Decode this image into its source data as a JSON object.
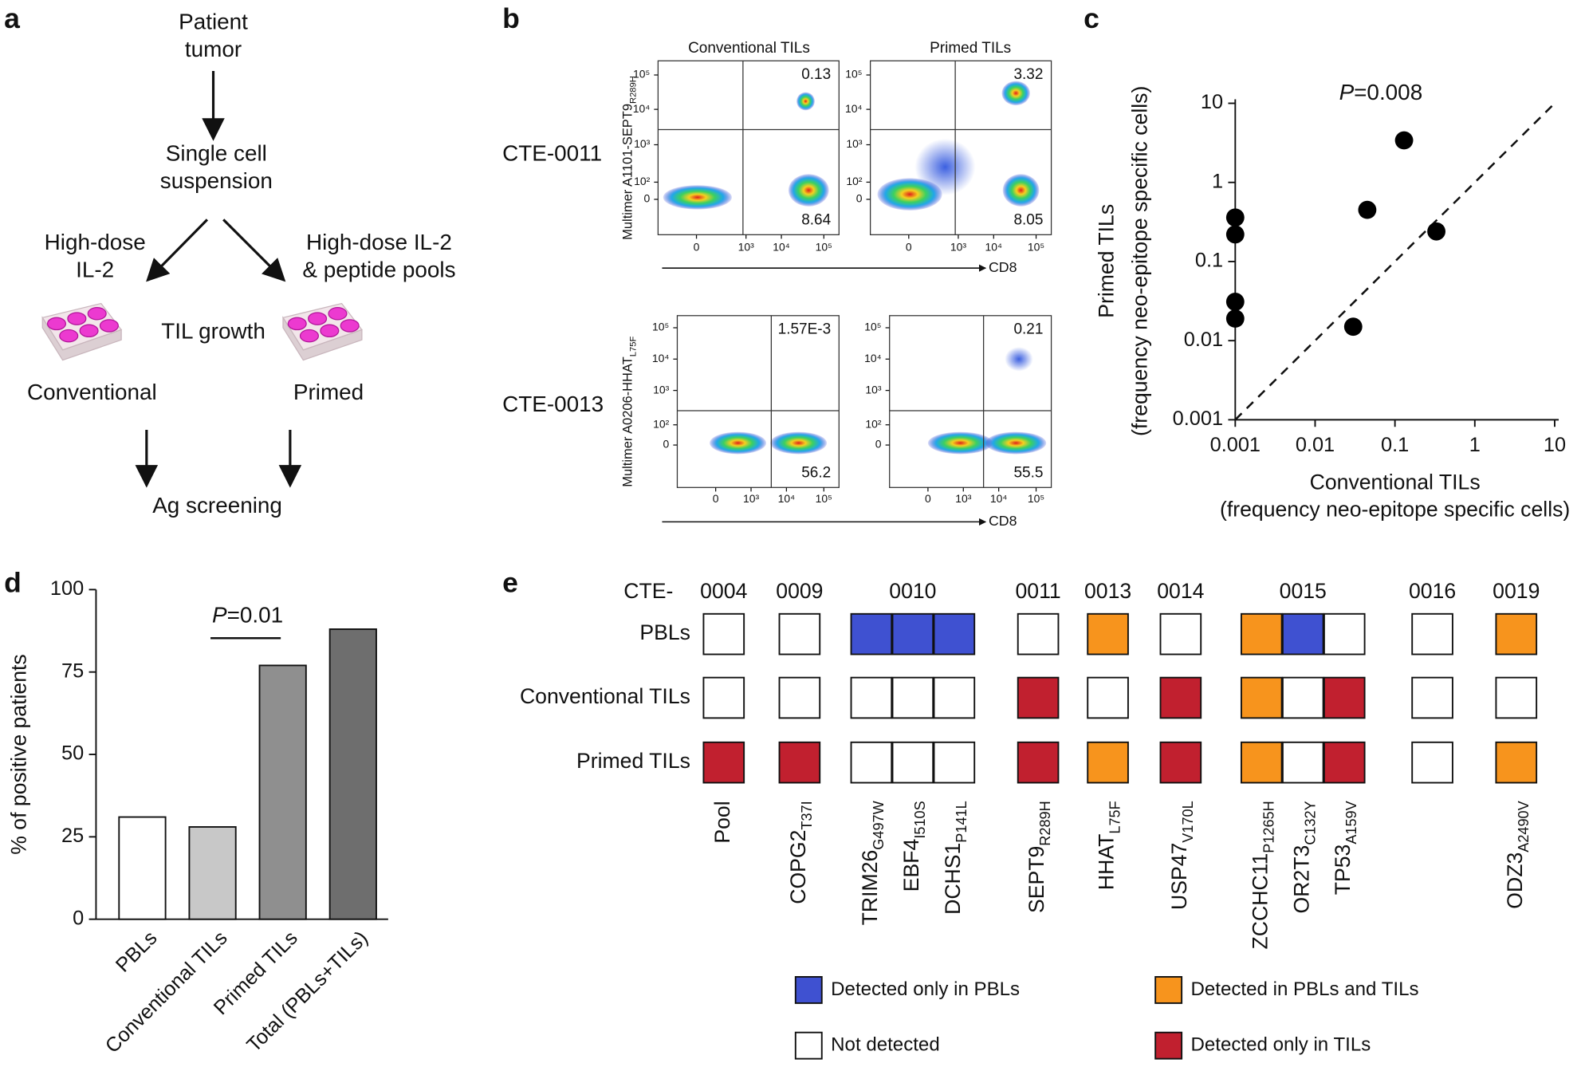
{
  "panel_labels": [
    "a",
    "b",
    "c",
    "d",
    "e"
  ],
  "diagram": {
    "nodes": [
      {
        "lines": [
          "Patient",
          "tumor"
        ]
      },
      {
        "lines": [
          "Single cell",
          "suspension"
        ]
      },
      {
        "lines": [
          "High-dose",
          "IL-2"
        ]
      },
      {
        "lines": [
          "High-dose IL-2",
          "& peptide pools"
        ]
      },
      {
        "lines": [
          "TIL growth"
        ]
      },
      {
        "lines": [
          "Conventional"
        ]
      },
      {
        "lines": [
          "Primed"
        ]
      },
      {
        "lines": [
          "Ag screening"
        ]
      }
    ]
  },
  "flow": {
    "column_titles": [
      "Conventional TILs",
      "Primed TILs"
    ],
    "x_label": "CD8",
    "x_ticks": [
      "0",
      "10³",
      "10⁴",
      "10⁵"
    ],
    "y_ticks": [
      "10⁵",
      "10⁴",
      "10³",
      "10²",
      "0"
    ],
    "rows": [
      {
        "name": "CTE-0011",
        "y_label": {
          "text": "Multimer A1101-SEPT9",
          "sub": "R289H"
        },
        "plots": [
          {
            "upper_right": "0.13",
            "lower_right": "8.64"
          },
          {
            "upper_right": "3.32",
            "lower_right": "8.05"
          }
        ]
      },
      {
        "name": "CTE-0013",
        "y_label": {
          "text": "Multimer A0206-HHAT",
          "sub": "L75F"
        },
        "plots": [
          {
            "upper_right": "1.57E-3",
            "lower_right": "56.2"
          },
          {
            "upper_right": "0.21",
            "lower_right": "55.5"
          }
        ]
      }
    ]
  },
  "chart_data": [
    {
      "type": "scatter",
      "x_label": [
        "Conventional TILs",
        "(frequency neo-epitope specific cells)"
      ],
      "y_label": [
        "Primed TILs",
        "(frequency neo-epitope specific cells)"
      ],
      "x": [
        0.001,
        0.001,
        0.001,
        0.001,
        0.03,
        0.045,
        0.13,
        0.33
      ],
      "values": [
        0.36,
        0.22,
        0.031,
        0.019,
        0.015,
        0.45,
        3.4,
        0.24
      ],
      "color": "#000000",
      "xlim": [
        0.001,
        10
      ],
      "ylim": [
        0.001,
        10
      ],
      "xticks": [
        0.001,
        0.01,
        0.1,
        1,
        10
      ],
      "yticks": [
        0.001,
        0.01,
        0.1,
        1,
        10
      ],
      "log_x": true,
      "log_y": true,
      "identity_line": true,
      "annotation": {
        "italic": "P",
        "text": "=0.008"
      }
    },
    {
      "type": "bar",
      "categories": [
        "PBLs",
        "Conventional TILs",
        "Primed TILs",
        "Total (PBLs+TILs)"
      ],
      "values": [
        31,
        28,
        77,
        88
      ],
      "colors": [
        "#ffffff",
        "#c8c8c8",
        "#8f8f8f",
        "#6e6e6e"
      ],
      "ylim": [
        0,
        100
      ],
      "yticks": [
        0,
        25,
        50,
        75,
        100
      ],
      "y_label": "% of positive patients",
      "annotation": {
        "italic": "P",
        "text": "=0.01",
        "between": [
          1,
          2
        ]
      }
    }
  ],
  "matrix": {
    "corner_label": "CTE-",
    "groups": [
      {
        "id": "0004",
        "columns": [
          {
            "gene": "Pool"
          }
        ]
      },
      {
        "id": "0009",
        "columns": [
          {
            "gene": "COPG2",
            "sub": "T37I"
          }
        ]
      },
      {
        "id": "0010",
        "columns": [
          {
            "gene": "TRIM26",
            "sub": "G497W"
          },
          {
            "gene": "EBF4",
            "sub": "I510S"
          },
          {
            "gene": "DCHS1",
            "sub": "P141L"
          }
        ]
      },
      {
        "id": "0011",
        "columns": [
          {
            "gene": "SEPT9",
            "sub": "R289H"
          }
        ]
      },
      {
        "id": "0013",
        "columns": [
          {
            "gene": "HHAT",
            "sub": "L75F"
          }
        ]
      },
      {
        "id": "0014",
        "columns": [
          {
            "gene": "USP47",
            "sub": "V170L"
          }
        ]
      },
      {
        "id": "0015",
        "columns": [
          {
            "gene": "ZCCHC11",
            "sub": "P1265H"
          },
          {
            "gene": "OR2T3",
            "sub": "C132Y"
          },
          {
            "gene": "TP53",
            "sub": "A159V"
          }
        ]
      },
      {
        "id": "0016",
        "columns": [
          null
        ]
      },
      {
        "id": "0019",
        "columns": [
          {
            "gene": "ODZ3",
            "sub": "A2490V"
          }
        ]
      }
    ],
    "rows": [
      {
        "name": "PBLs",
        "cells": [
          "#ffffff",
          "#ffffff",
          "#3f51d1",
          "#3f51d1",
          "#3f51d1",
          "#ffffff",
          "#f7941d",
          "#ffffff",
          "#f7941d",
          "#3f51d1",
          "#ffffff",
          "#ffffff",
          "#f7941d"
        ]
      },
      {
        "name": "Conventional TILs",
        "cells": [
          "#ffffff",
          "#ffffff",
          "#ffffff",
          "#ffffff",
          "#ffffff",
          "#c1202f",
          "#ffffff",
          "#c1202f",
          "#f7941d",
          "#ffffff",
          "#c1202f",
          "#ffffff",
          "#ffffff"
        ]
      },
      {
        "name": "Primed TILs",
        "cells": [
          "#c1202f",
          "#c1202f",
          "#ffffff",
          "#ffffff",
          "#ffffff",
          "#c1202f",
          "#f7941d",
          "#c1202f",
          "#f7941d",
          "#ffffff",
          "#c1202f",
          "#ffffff",
          "#f7941d"
        ]
      }
    ],
    "legend": [
      {
        "label": "Detected only in PBLs",
        "color": "#3f51d1"
      },
      {
        "label": "Detected in PBLs and TILs",
        "color": "#f7941d"
      },
      {
        "label": "Not detected",
        "color": "#ffffff"
      },
      {
        "label": "Detected only in TILs",
        "color": "#c1202f"
      }
    ]
  }
}
